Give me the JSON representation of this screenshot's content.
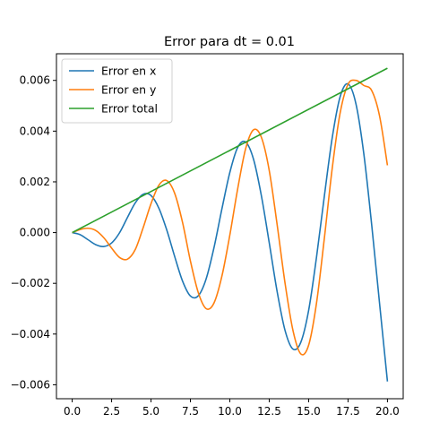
{
  "chart_data": {
    "type": "line",
    "title": "Error para dt = 0.01",
    "xlabel": "",
    "ylabel": "",
    "xlim": [
      -1.0,
      21.0
    ],
    "ylim": [
      -0.00655,
      0.00705
    ],
    "xticks": [
      0.0,
      2.5,
      5.0,
      7.5,
      10.0,
      12.5,
      15.0,
      17.5,
      20.0
    ],
    "xtick_labels": [
      "0.0",
      "2.5",
      "5.0",
      "7.5",
      "10.0",
      "12.5",
      "15.0",
      "17.5",
      "20.0"
    ],
    "yticks": [
      -0.006,
      -0.004,
      -0.002,
      0.0,
      0.002,
      0.004,
      0.006
    ],
    "ytick_labels": [
      "−0.006",
      "−0.004",
      "−0.002",
      "0.000",
      "0.002",
      "0.004",
      "0.006"
    ],
    "grid": false,
    "legend_position": "top-left",
    "series": [
      {
        "name": "Error en x",
        "color": "#1f77b4",
        "x": [
          0.0,
          0.5,
          1.0,
          1.5,
          2.0,
          2.5,
          3.0,
          3.5,
          4.0,
          4.5,
          5.0,
          5.5,
          6.0,
          6.5,
          7.0,
          7.5,
          8.0,
          8.5,
          9.0,
          9.5,
          10.0,
          10.5,
          11.0,
          11.5,
          12.0,
          12.5,
          13.0,
          13.5,
          14.0,
          14.5,
          15.0,
          15.5,
          16.0,
          16.5,
          17.0,
          17.5,
          18.0,
          18.5,
          19.0,
          19.5,
          20.0
        ],
        "y": [
          0.0,
          -8e-05,
          -0.00028,
          -0.00048,
          -0.00055,
          -0.00041,
          -1e-05,
          0.00059,
          0.00117,
          0.00151,
          0.00146,
          0.00096,
          0.0001,
          -0.00094,
          -0.00191,
          -0.0025,
          -0.00249,
          -0.00182,
          -0.00058,
          0.00094,
          0.00237,
          0.00336,
          0.00357,
          0.0029,
          0.00146,
          -0.0004,
          -0.00232,
          -0.00385,
          -0.00459,
          -0.00433,
          -0.00307,
          -0.00097,
          0.00145,
          0.00375,
          0.00536,
          0.00586,
          0.00508,
          0.00311,
          0.00031,
          -0.00279,
          -0.00587
        ]
      },
      {
        "name": "Error en y",
        "color": "#ff7f0e",
        "x": [
          0.0,
          0.5,
          1.0,
          1.5,
          2.0,
          2.5,
          3.0,
          3.5,
          4.0,
          4.5,
          5.0,
          5.5,
          6.0,
          6.5,
          7.0,
          7.5,
          8.0,
          8.5,
          9.0,
          9.5,
          10.0,
          10.5,
          11.0,
          11.5,
          12.0,
          12.5,
          13.0,
          13.5,
          14.0,
          14.5,
          15.0,
          15.5,
          16.0,
          16.5,
          17.0,
          17.5,
          18.0,
          18.5,
          19.0,
          19.5,
          20.0
        ],
        "y": [
          0.0,
          0.00012,
          0.00017,
          8e-05,
          -0.0002,
          -0.00061,
          -0.00098,
          -0.00105,
          -0.00067,
          0.00019,
          0.00114,
          0.00187,
          0.00205,
          0.00155,
          0.0004,
          -0.00112,
          -0.00237,
          -0.003,
          -0.00277,
          -0.00171,
          -0.0001,
          0.00173,
          0.0033,
          0.00405,
          0.00376,
          0.00245,
          0.00032,
          -0.00198,
          -0.00384,
          -0.00478,
          -0.00444,
          -0.00278,
          -0.00021,
          0.00255,
          0.00472,
          0.00585,
          0.006,
          0.0058,
          0.0056,
          0.0046,
          0.00265
        ]
      },
      {
        "name": "Error total",
        "color": "#2ca02c",
        "x": [
          0.0,
          20.0
        ],
        "y": [
          0.0,
          0.00648
        ]
      }
    ]
  }
}
